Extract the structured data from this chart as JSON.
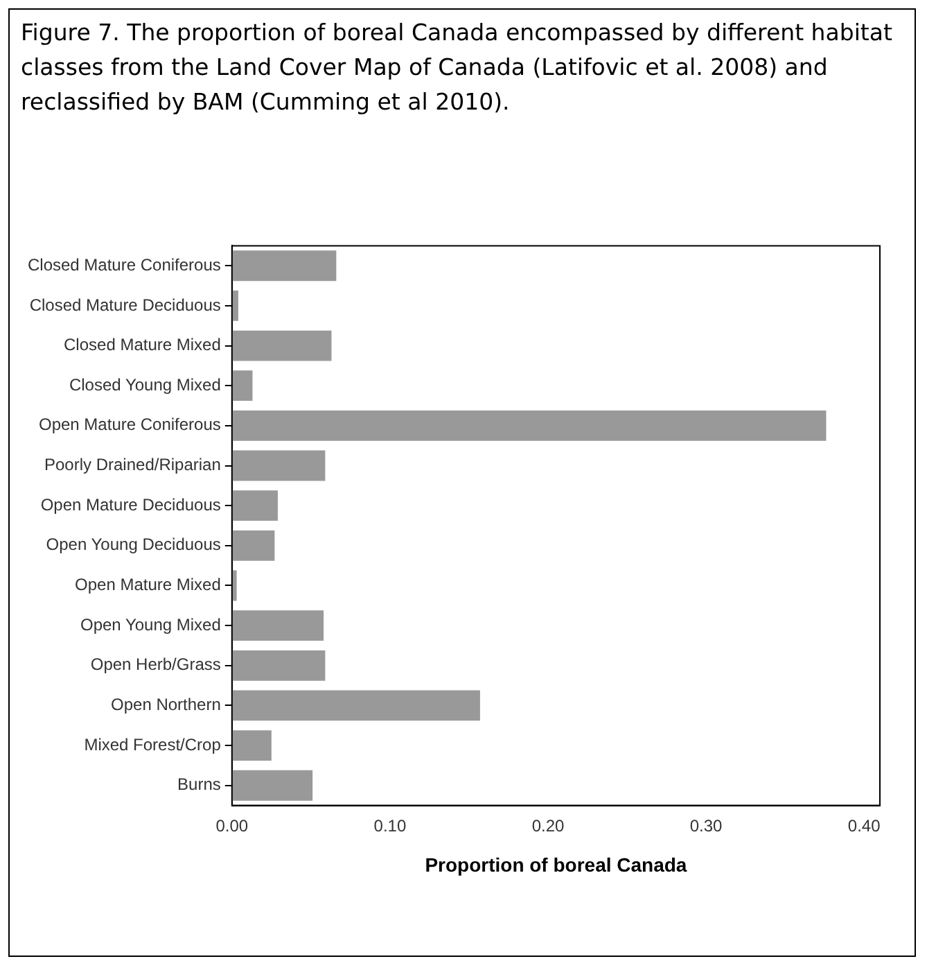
{
  "chart_data": {
    "type": "bar",
    "orientation": "horizontal",
    "title": "Figure 7. The proportion of boreal Canada encompassed by different habitat classes from the Land Cover Map of Canada (Latifovic et al. 2008) and reclassified by BAM (Cumming et al 2010).",
    "xlabel": "Proportion of boreal Canada",
    "categories": [
      "Closed Mature Coniferous",
      "Closed Mature Deciduous",
      "Closed Mature Mixed",
      "Closed Young Mixed",
      "Open Mature Coniferous",
      "Poorly Drained/Riparian",
      "Open Mature Deciduous",
      "Open Young Deciduous",
      "Open Mature Mixed",
      "Open Young Mixed",
      "Open Herb/Grass",
      "Open Northern",
      "Mixed Forest/Crop",
      "Burns"
    ],
    "values": [
      0.066,
      0.004,
      0.063,
      0.013,
      0.376,
      0.059,
      0.029,
      0.027,
      0.003,
      0.058,
      0.059,
      0.157,
      0.025,
      0.051
    ],
    "color": "#999999",
    "xlim": [
      0,
      0.41
    ],
    "xticks": [
      {
        "value": 0,
        "label": "0.00"
      },
      {
        "value": 0.1,
        "label": "0.10"
      },
      {
        "value": 0.2,
        "label": "0.20"
      },
      {
        "value": 0.3,
        "label": "0.30"
      },
      {
        "value": 0.4,
        "label": "0.40"
      }
    ],
    "grid": false,
    "legend": false
  }
}
